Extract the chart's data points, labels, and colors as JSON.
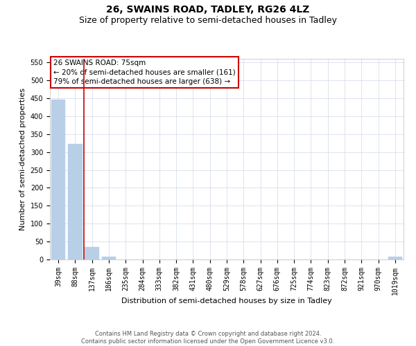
{
  "title": "26, SWAINS ROAD, TADLEY, RG26 4LZ",
  "subtitle": "Size of property relative to semi-detached houses in Tadley",
  "xlabel": "Distribution of semi-detached houses by size in Tadley",
  "ylabel": "Number of semi-detached properties",
  "categories": [
    "39sqm",
    "88sqm",
    "137sqm",
    "186sqm",
    "235sqm",
    "284sqm",
    "333sqm",
    "382sqm",
    "431sqm",
    "480sqm",
    "529sqm",
    "578sqm",
    "627sqm",
    "676sqm",
    "725sqm",
    "774sqm",
    "823sqm",
    "872sqm",
    "921sqm",
    "970sqm",
    "1019sqm"
  ],
  "values": [
    447,
    322,
    35,
    7,
    0,
    0,
    0,
    0,
    0,
    0,
    0,
    0,
    0,
    0,
    0,
    0,
    0,
    0,
    0,
    0,
    7
  ],
  "bar_color": "#b8cfe8",
  "annotation_title": "26 SWAINS ROAD: 75sqm",
  "annotation_line1": "← 20% of semi-detached houses are smaller (161)",
  "annotation_line2": "79% of semi-detached houses are larger (638) →",
  "annotation_box_facecolor": "#ffffff",
  "annotation_box_edgecolor": "#cc0000",
  "vline_position": 1.5,
  "vline_color": "#cc0000",
  "ylim": [
    0,
    560
  ],
  "yticks": [
    0,
    50,
    100,
    150,
    200,
    250,
    300,
    350,
    400,
    450,
    500,
    550
  ],
  "grid_color": "#d0d8e8",
  "bg_color": "#ffffff",
  "title_fontsize": 10,
  "subtitle_fontsize": 9,
  "axis_label_fontsize": 8,
  "tick_fontsize": 7,
  "annotation_fontsize": 7.5,
  "footer_line1": "Contains HM Land Registry data © Crown copyright and database right 2024.",
  "footer_line2": "Contains public sector information licensed under the Open Government Licence v3.0.",
  "footer_fontsize": 6
}
